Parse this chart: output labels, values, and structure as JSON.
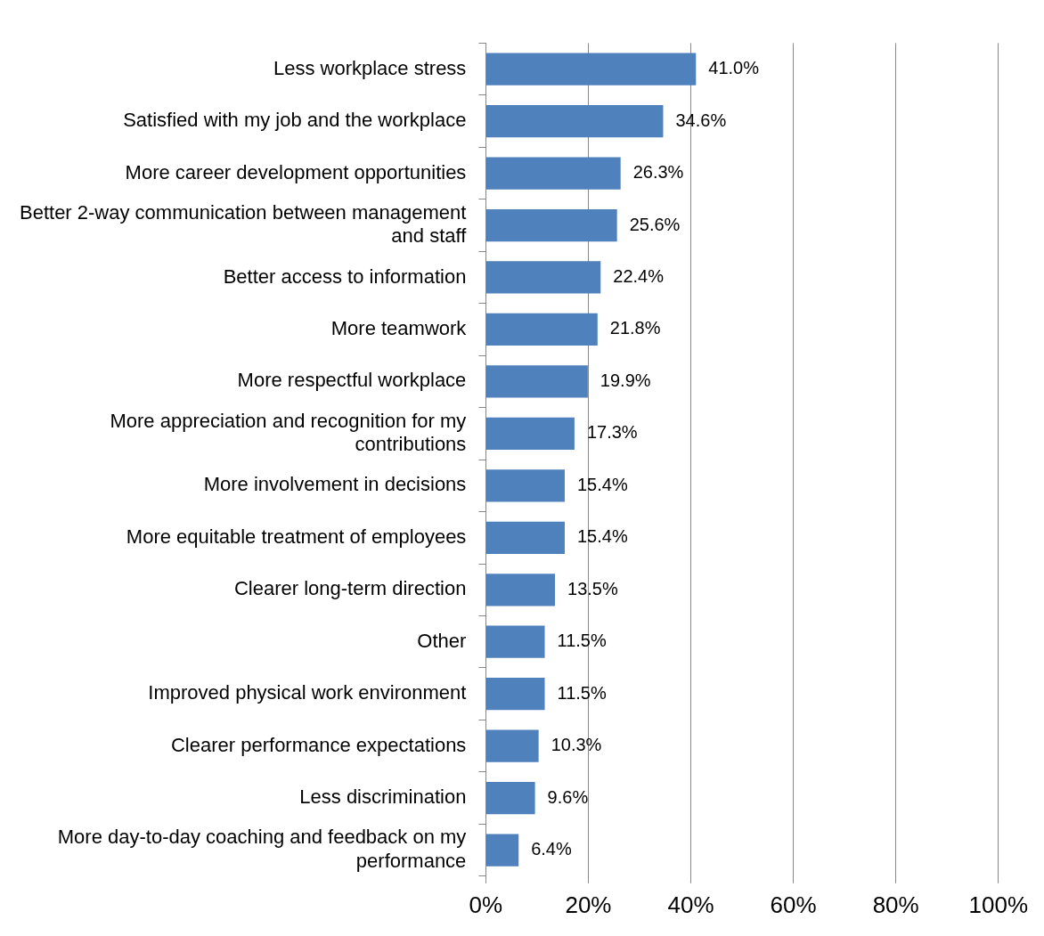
{
  "chart_data": {
    "type": "bar",
    "orientation": "horizontal",
    "categories": [
      "Less workplace stress",
      "Satisfied with my job and the workplace",
      "More career development opportunities",
      "Better 2-way communication between management and staff",
      "Better access to information",
      "More teamwork",
      "More respectful workplace",
      "More appreciation and recognition for my contributions",
      "More involvement in decisions",
      "More equitable treatment of employees",
      "Clearer long-term direction",
      "Other",
      "Improved physical work environment",
      "Clearer performance expectations",
      "Less discrimination",
      "More day-to-day coaching and feedback on my performance"
    ],
    "values": [
      41.0,
      34.6,
      26.3,
      25.6,
      22.4,
      21.8,
      19.9,
      17.3,
      15.4,
      15.4,
      13.5,
      11.5,
      11.5,
      10.3,
      9.6,
      6.4
    ],
    "value_labels": [
      "41.0%",
      "34.6%",
      "26.3%",
      "25.6%",
      "22.4%",
      "21.8%",
      "19.9%",
      "17.3%",
      "15.4%",
      "15.4%",
      "13.5%",
      "11.5%",
      "11.5%",
      "10.3%",
      "9.6%",
      "6.4%"
    ],
    "color": "#4f81bd",
    "xlim": [
      0,
      100
    ],
    "xticks": [
      {
        "value": 0,
        "label": "0%"
      },
      {
        "value": 20,
        "label": "20%"
      },
      {
        "value": 40,
        "label": "40%"
      },
      {
        "value": 60,
        "label": "60%"
      },
      {
        "value": 80,
        "label": "80%"
      },
      {
        "value": 100,
        "label": "100%"
      }
    ],
    "grid": "x",
    "legend": false
  }
}
